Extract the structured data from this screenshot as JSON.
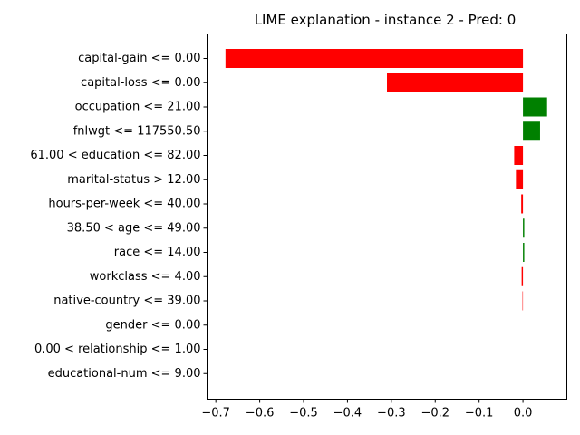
{
  "chart_data": {
    "type": "bar",
    "orientation": "horizontal",
    "title": "LIME explanation - instance 2 - Pred: 0",
    "xlabel": "",
    "ylabel": "",
    "xlim": [
      -0.72,
      0.1
    ],
    "xticks": [
      -0.7,
      -0.6,
      -0.5,
      -0.4,
      -0.3,
      -0.2,
      -0.1,
      0.0
    ],
    "xtick_labels": [
      "−0.7",
      "−0.6",
      "−0.5",
      "−0.4",
      "−0.3",
      "−0.2",
      "−0.1",
      "0.0"
    ],
    "grid": false,
    "colors": {
      "positive": "#008000",
      "negative": "#ff0000"
    },
    "categories": [
      "capital-gain <= 0.00",
      "capital-loss <= 0.00",
      "occupation <= 21.00",
      "fnlwgt <= 117550.50",
      "61.00 < education <= 82.00",
      "marital-status > 12.00",
      "hours-per-week <= 40.00",
      "38.50 < age <= 49.00",
      "race <= 14.00",
      "workclass <= 4.00",
      "native-country <= 39.00",
      "gender <= 0.00",
      "0.00 < relationship <= 1.00",
      "educational-num <= 9.00"
    ],
    "values": [
      -0.678,
      -0.31,
      0.055,
      0.039,
      -0.02,
      -0.016,
      -0.004,
      0.003,
      0.003,
      -0.003,
      -0.001,
      0.0,
      0.0,
      0.0
    ]
  }
}
